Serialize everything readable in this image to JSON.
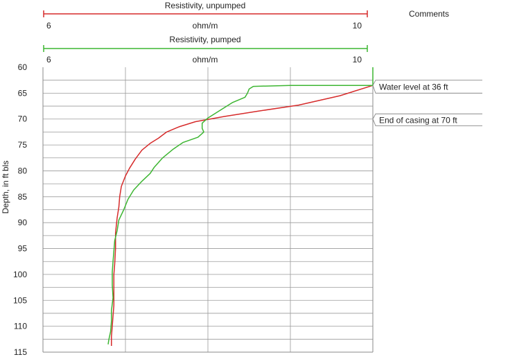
{
  "chart_data": {
    "type": "line",
    "y_axis": {
      "label": "Depth, in ft bls",
      "range": [
        60,
        115
      ],
      "ticks": [
        60,
        65,
        70,
        75,
        80,
        85,
        90,
        95,
        100,
        105,
        110,
        115
      ],
      "gridline_step": 2.5,
      "inverted": true
    },
    "tracks": [
      {
        "name": "Resistivity, unpumped",
        "unit": "ohm/m",
        "min_label": "6",
        "max_label": "10",
        "range": [
          6,
          10
        ],
        "color": "#d62a2a"
      },
      {
        "name": "Resistivity, pumped",
        "unit": "ohm/m",
        "min_label": "6",
        "max_label": "10",
        "range": [
          6,
          10
        ],
        "color": "#3cb531"
      }
    ],
    "vertical_gridlines": [
      7,
      8,
      9
    ],
    "series": [
      {
        "name": "Resistivity, unpumped",
        "color": "#d62a2a",
        "points": [
          [
            10.0,
            63.5
          ],
          [
            9.6,
            65.5
          ],
          [
            9.1,
            67.3
          ],
          [
            8.6,
            68.5
          ],
          [
            8.2,
            69.5
          ],
          [
            7.85,
            70.5
          ],
          [
            7.65,
            71.5
          ],
          [
            7.5,
            72.5
          ],
          [
            7.4,
            73.7
          ],
          [
            7.3,
            74.7
          ],
          [
            7.2,
            76.0
          ],
          [
            7.12,
            77.7
          ],
          [
            7.05,
            79.5
          ],
          [
            7.0,
            81.0
          ],
          [
            6.95,
            83.0
          ],
          [
            6.93,
            85.0
          ],
          [
            6.92,
            87.0
          ],
          [
            6.9,
            89.0
          ],
          [
            6.89,
            90.5
          ],
          [
            6.88,
            92.0
          ],
          [
            6.88,
            95.0
          ],
          [
            6.87,
            98.0
          ],
          [
            6.86,
            100.0
          ],
          [
            6.86,
            103.0
          ],
          [
            6.86,
            106.0
          ],
          [
            6.85,
            108.0
          ],
          [
            6.84,
            110.0
          ],
          [
            6.83,
            112.0
          ],
          [
            6.83,
            113.8
          ]
        ]
      },
      {
        "name": "Resistivity, pumped",
        "color": "#3cb531",
        "points": [
          [
            10.0,
            60.0
          ],
          [
            10.0,
            63.5
          ],
          [
            9.0,
            63.5
          ],
          [
            8.55,
            63.7
          ],
          [
            8.5,
            64.2
          ],
          [
            8.48,
            65.0
          ],
          [
            8.45,
            65.8
          ],
          [
            8.3,
            66.8
          ],
          [
            8.2,
            67.8
          ],
          [
            8.1,
            68.8
          ],
          [
            8.0,
            69.8
          ],
          [
            7.93,
            70.8
          ],
          [
            7.93,
            71.8
          ],
          [
            7.95,
            72.5
          ],
          [
            7.88,
            73.5
          ],
          [
            7.7,
            74.5
          ],
          [
            7.58,
            75.8
          ],
          [
            7.45,
            77.5
          ],
          [
            7.35,
            79.3
          ],
          [
            7.3,
            80.5
          ],
          [
            7.2,
            82.0
          ],
          [
            7.1,
            83.7
          ],
          [
            7.03,
            85.5
          ],
          [
            6.98,
            87.5
          ],
          [
            6.92,
            89.5
          ],
          [
            6.9,
            91.5
          ],
          [
            6.87,
            93.5
          ],
          [
            6.86,
            95.5
          ],
          [
            6.85,
            97.5
          ],
          [
            6.84,
            99.5
          ],
          [
            6.84,
            102.0
          ],
          [
            6.85,
            104.5
          ],
          [
            6.83,
            107.0
          ],
          [
            6.83,
            109.0
          ],
          [
            6.82,
            111.0
          ],
          [
            6.8,
            112.5
          ],
          [
            6.79,
            113.5
          ]
        ]
      }
    ],
    "annotations": [
      {
        "text": "Water level at 36 ft",
        "depth": 63.5,
        "depth_top": 62.5,
        "depth_bottom": 65.0
      },
      {
        "text": "End of casing at 70 ft",
        "depth": 70.0,
        "depth_top": 69.0,
        "depth_bottom": 71.3
      }
    ],
    "comments_header": "Comments"
  }
}
